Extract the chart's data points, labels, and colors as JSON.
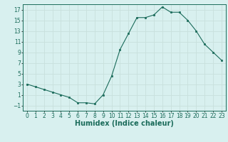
{
  "xlabel": "Humidex (Indice chaleur)",
  "x": [
    0,
    1,
    2,
    3,
    4,
    5,
    6,
    7,
    8,
    9,
    10,
    11,
    12,
    13,
    14,
    15,
    16,
    17,
    18,
    19,
    20,
    21,
    22,
    23
  ],
  "y": [
    3,
    2.5,
    2,
    1.5,
    1,
    0.5,
    -0.5,
    -0.5,
    -0.7,
    1,
    4.5,
    9.5,
    12.5,
    15.5,
    15.5,
    16,
    17.5,
    16.5,
    16.5,
    15,
    13,
    10.5,
    9,
    7.5
  ],
  "xlim": [
    -0.5,
    23.5
  ],
  "ylim": [
    -2,
    18
  ],
  "yticks": [
    -1,
    1,
    3,
    5,
    7,
    9,
    11,
    13,
    15,
    17
  ],
  "xticks": [
    0,
    1,
    2,
    3,
    4,
    5,
    6,
    7,
    8,
    9,
    10,
    11,
    12,
    13,
    14,
    15,
    16,
    17,
    18,
    19,
    20,
    21,
    22,
    23
  ],
  "line_color": "#1a6b5a",
  "marker_color": "#1a6b5a",
  "bg_color": "#d8f0ef",
  "grid_color": "#c8e0dc",
  "tick_label_fontsize": 5.5,
  "xlabel_fontsize": 7.0
}
